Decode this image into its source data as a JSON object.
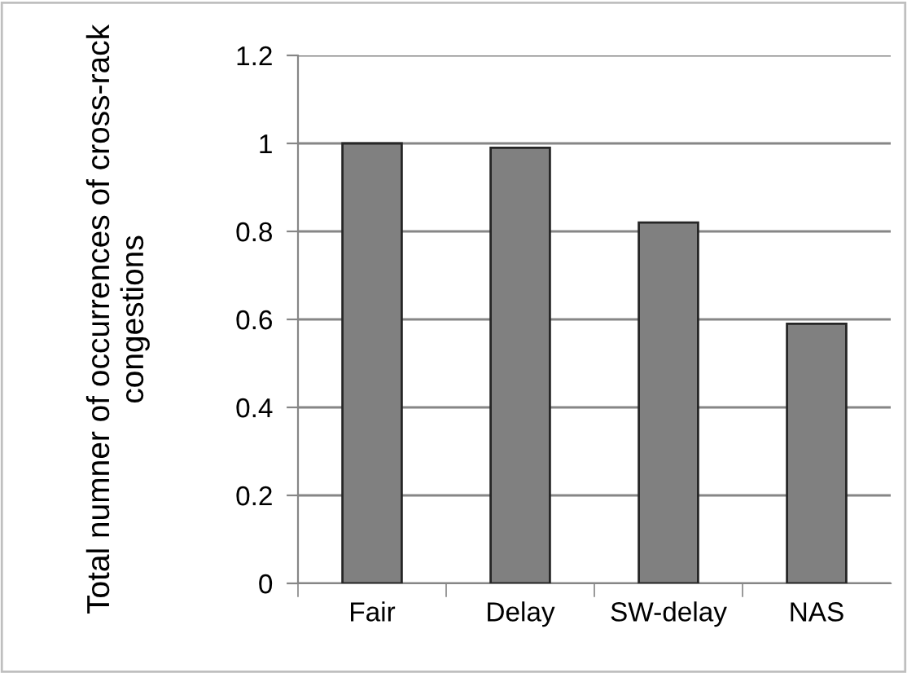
{
  "chart_data": {
    "type": "bar",
    "ylabel": "Total numner of occurrences of cross-rack congestions",
    "categories": [
      "Fair",
      "Delay",
      "SW-delay",
      "NAS"
    ],
    "values": [
      1.0,
      0.99,
      0.82,
      0.59
    ],
    "color": "#808080",
    "ylim": [
      0,
      1.2
    ],
    "yticks": [
      {
        "value": 0,
        "label": "0"
      },
      0.2,
      0.4,
      0.6,
      0.8,
      {
        "value": 1,
        "label": "1"
      },
      1.2
    ],
    "grid": "y"
  }
}
